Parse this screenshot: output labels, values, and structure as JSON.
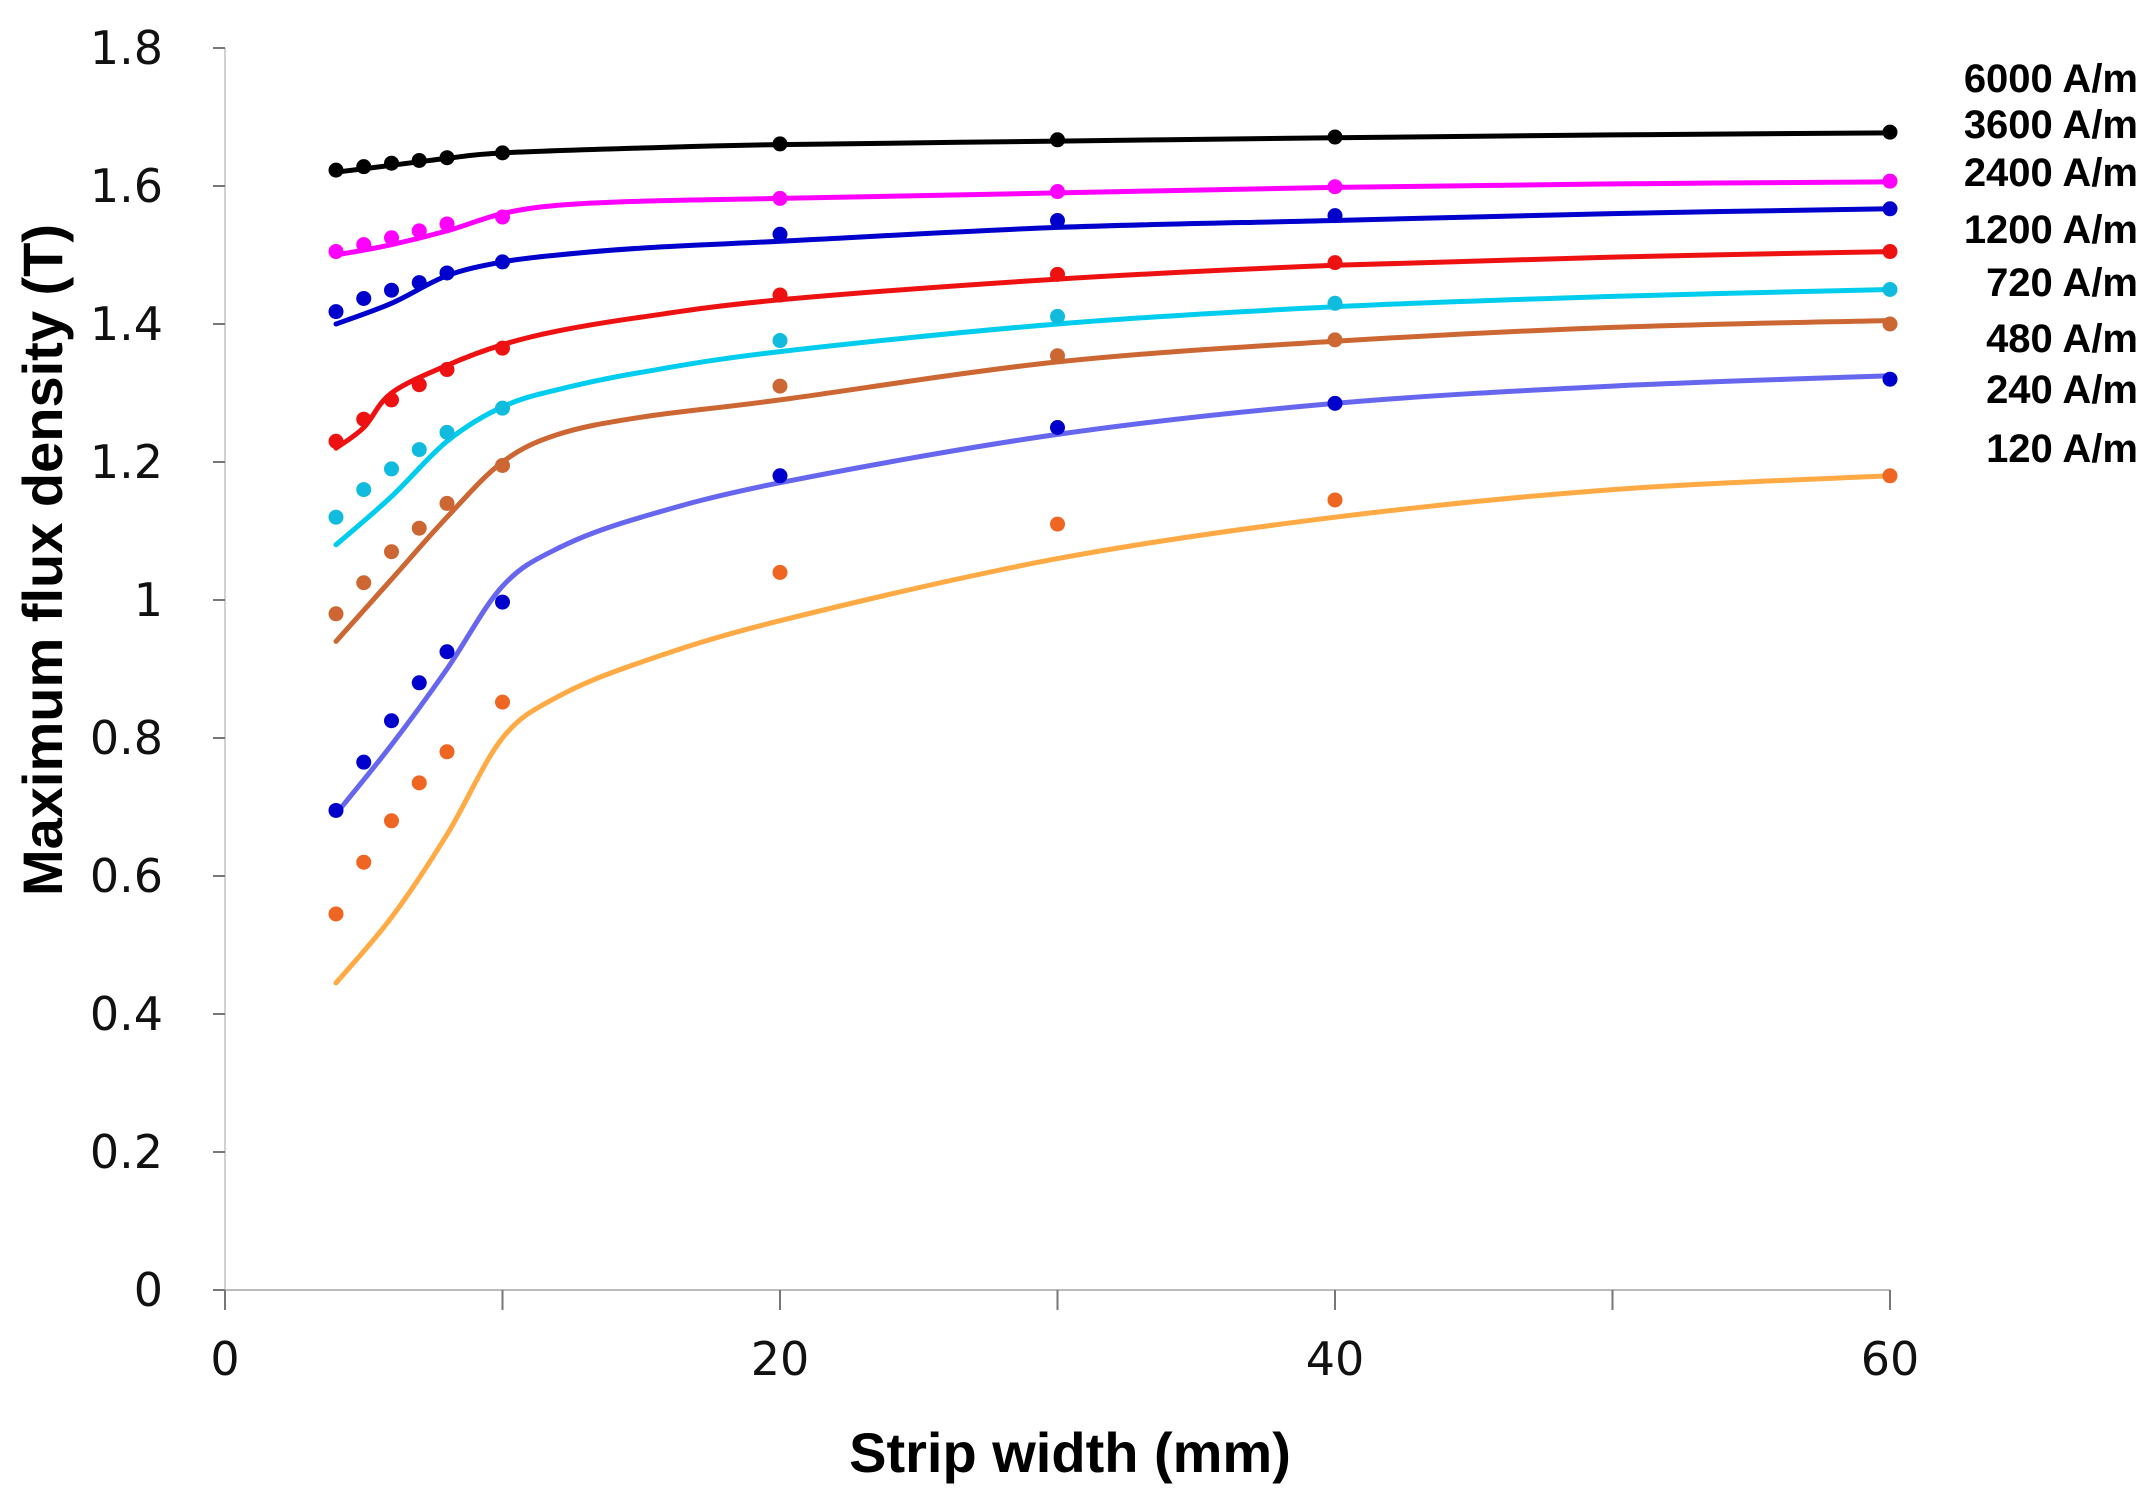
{
  "chart_data": {
    "type": "scatter",
    "title": "",
    "xlabel": "Strip width (mm)",
    "ylabel": "Maximum flux density (T)",
    "xlim": [
      0,
      60
    ],
    "ylim": [
      0,
      1.8
    ],
    "x_ticks": [
      {
        "value": 0,
        "label": "0"
      },
      {
        "value": 20,
        "label": "20"
      },
      {
        "value": 40,
        "label": "40"
      },
      {
        "value": 60,
        "label": "60"
      }
    ],
    "x_minor_ticks": [
      10,
      30,
      50
    ],
    "y_ticks": [
      {
        "value": 0,
        "label": "0"
      },
      {
        "value": 0.2,
        "label": "0.2"
      },
      {
        "value": 0.4,
        "label": "0.4"
      },
      {
        "value": 0.6,
        "label": "0.6"
      },
      {
        "value": 0.8,
        "label": "0.8"
      },
      {
        "value": 1.0,
        "label": "1"
      },
      {
        "value": 1.2,
        "label": "1.2"
      },
      {
        "value": 1.4,
        "label": "1.4"
      },
      {
        "value": 1.6,
        "label": "1.6"
      },
      {
        "value": 1.8,
        "label": "1.8"
      }
    ],
    "grid": false,
    "legend_position": "right",
    "series": [
      {
        "name": "6000 A/m",
        "line_color": "#000000",
        "marker_color": "#000000",
        "points": [
          [
            4,
            1.623
          ],
          [
            5,
            1.628
          ],
          [
            6,
            1.633
          ],
          [
            7,
            1.637
          ],
          [
            8,
            1.641
          ],
          [
            10,
            1.648
          ],
          [
            20,
            1.661
          ],
          [
            30,
            1.667
          ],
          [
            40,
            1.671
          ],
          [
            60,
            1.678
          ]
        ],
        "curve": [
          [
            4,
            1.62
          ],
          [
            6,
            1.63
          ],
          [
            8,
            1.64
          ],
          [
            10,
            1.648
          ],
          [
            15,
            1.655
          ],
          [
            20,
            1.66
          ],
          [
            30,
            1.665
          ],
          [
            40,
            1.67
          ],
          [
            50,
            1.674
          ],
          [
            60,
            1.677
          ]
        ]
      },
      {
        "name": "3600 A/m",
        "line_color": "#ff00ff",
        "marker_color": "#ff00ff",
        "points": [
          [
            4,
            1.505
          ],
          [
            5,
            1.515
          ],
          [
            6,
            1.525
          ],
          [
            7,
            1.535
          ],
          [
            8,
            1.545
          ],
          [
            10,
            1.555
          ],
          [
            20,
            1.582
          ],
          [
            30,
            1.592
          ],
          [
            40,
            1.599
          ],
          [
            60,
            1.607
          ]
        ],
        "curve": [
          [
            4,
            1.5
          ],
          [
            6,
            1.515
          ],
          [
            8,
            1.535
          ],
          [
            10,
            1.56
          ],
          [
            12,
            1.572
          ],
          [
            15,
            1.578
          ],
          [
            20,
            1.582
          ],
          [
            30,
            1.59
          ],
          [
            40,
            1.598
          ],
          [
            50,
            1.603
          ],
          [
            60,
            1.606
          ]
        ]
      },
      {
        "name": "2400 A/m",
        "line_color": "#0000cc",
        "marker_color": "#0000cc",
        "points": [
          [
            4,
            1.418
          ],
          [
            5,
            1.437
          ],
          [
            6,
            1.449
          ],
          [
            7,
            1.46
          ],
          [
            8,
            1.474
          ],
          [
            10,
            1.49
          ],
          [
            20,
            1.53
          ],
          [
            30,
            1.55
          ],
          [
            40,
            1.557
          ],
          [
            60,
            1.567
          ]
        ],
        "curve": [
          [
            4,
            1.4
          ],
          [
            6,
            1.43
          ],
          [
            8,
            1.47
          ],
          [
            10,
            1.49
          ],
          [
            12,
            1.5
          ],
          [
            15,
            1.51
          ],
          [
            20,
            1.52
          ],
          [
            30,
            1.54
          ],
          [
            40,
            1.55
          ],
          [
            50,
            1.56
          ],
          [
            60,
            1.567
          ]
        ]
      },
      {
        "name": "1200 A/m",
        "line_color": "#ee1111",
        "marker_color": "#ee1111",
        "points": [
          [
            4,
            1.23
          ],
          [
            5,
            1.262
          ],
          [
            6,
            1.29
          ],
          [
            7,
            1.312
          ],
          [
            8,
            1.334
          ],
          [
            10,
            1.365
          ],
          [
            20,
            1.442
          ],
          [
            30,
            1.472
          ],
          [
            40,
            1.489
          ],
          [
            60,
            1.505
          ]
        ],
        "curve": [
          [
            4,
            1.22
          ],
          [
            5,
            1.25
          ],
          [
            6,
            1.3
          ],
          [
            8,
            1.34
          ],
          [
            10,
            1.37
          ],
          [
            12,
            1.39
          ],
          [
            15,
            1.41
          ],
          [
            20,
            1.435
          ],
          [
            30,
            1.465
          ],
          [
            40,
            1.485
          ],
          [
            50,
            1.497
          ],
          [
            60,
            1.505
          ]
        ]
      },
      {
        "name": "720 A/m",
        "line_color": "#00ccee",
        "marker_color": "#11bbdd",
        "points": [
          [
            4,
            1.12
          ],
          [
            5,
            1.16
          ],
          [
            6,
            1.19
          ],
          [
            7,
            1.218
          ],
          [
            8,
            1.243
          ],
          [
            10,
            1.278
          ],
          [
            20,
            1.376
          ],
          [
            30,
            1.411
          ],
          [
            40,
            1.43
          ],
          [
            60,
            1.45
          ]
        ],
        "curve": [
          [
            4,
            1.08
          ],
          [
            6,
            1.15
          ],
          [
            8,
            1.23
          ],
          [
            10,
            1.28
          ],
          [
            12,
            1.305
          ],
          [
            15,
            1.33
          ],
          [
            20,
            1.36
          ],
          [
            30,
            1.4
          ],
          [
            40,
            1.425
          ],
          [
            50,
            1.44
          ],
          [
            60,
            1.45
          ]
        ]
      },
      {
        "name": "480 A/m",
        "line_color": "#cc6633",
        "marker_color": "#cc6633",
        "points": [
          [
            4,
            0.98
          ],
          [
            5,
            1.025
          ],
          [
            6,
            1.07
          ],
          [
            7,
            1.104
          ],
          [
            8,
            1.14
          ],
          [
            10,
            1.195
          ],
          [
            20,
            1.31
          ],
          [
            30,
            1.354
          ],
          [
            40,
            1.377
          ],
          [
            60,
            1.4
          ]
        ],
        "curve": [
          [
            4,
            0.94
          ],
          [
            6,
            1.03
          ],
          [
            8,
            1.12
          ],
          [
            10,
            1.2
          ],
          [
            12,
            1.24
          ],
          [
            15,
            1.265
          ],
          [
            20,
            1.29
          ],
          [
            30,
            1.345
          ],
          [
            40,
            1.375
          ],
          [
            50,
            1.395
          ],
          [
            60,
            1.405
          ]
        ]
      },
      {
        "name": "240 A/m",
        "line_color": "#6666ee",
        "marker_color": "#0000cc",
        "points": [
          [
            4,
            0.695
          ],
          [
            5,
            0.765
          ],
          [
            6,
            0.825
          ],
          [
            7,
            0.88
          ],
          [
            8,
            0.925
          ],
          [
            10,
            0.997
          ],
          [
            20,
            1.18
          ],
          [
            30,
            1.25
          ],
          [
            40,
            1.285
          ],
          [
            60,
            1.32
          ]
        ],
        "curve": [
          [
            4,
            0.69
          ],
          [
            6,
            0.79
          ],
          [
            8,
            0.9
          ],
          [
            10,
            1.02
          ],
          [
            12,
            1.075
          ],
          [
            15,
            1.12
          ],
          [
            20,
            1.17
          ],
          [
            30,
            1.24
          ],
          [
            40,
            1.285
          ],
          [
            50,
            1.31
          ],
          [
            60,
            1.325
          ]
        ]
      },
      {
        "name": "120 A/m",
        "line_color": "#ffaa44",
        "marker_color": "#ee6622",
        "points": [
          [
            4,
            0.545
          ],
          [
            5,
            0.62
          ],
          [
            6,
            0.68
          ],
          [
            7,
            0.735
          ],
          [
            8,
            0.78
          ],
          [
            10,
            0.852
          ],
          [
            20,
            1.04
          ],
          [
            30,
            1.11
          ],
          [
            40,
            1.145
          ],
          [
            60,
            1.18
          ]
        ],
        "curve": [
          [
            4,
            0.445
          ],
          [
            6,
            0.54
          ],
          [
            8,
            0.66
          ],
          [
            10,
            0.8
          ],
          [
            12,
            0.86
          ],
          [
            15,
            0.91
          ],
          [
            20,
            0.97
          ],
          [
            30,
            1.06
          ],
          [
            40,
            1.12
          ],
          [
            50,
            1.16
          ],
          [
            60,
            1.18
          ]
        ]
      }
    ]
  }
}
